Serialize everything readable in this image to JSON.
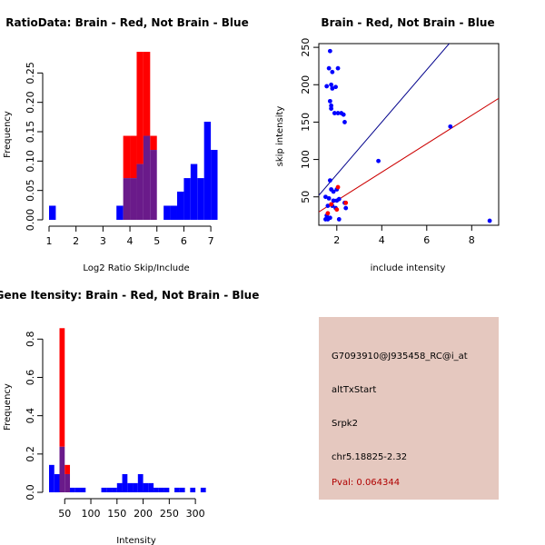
{
  "colors": {
    "red": "#ff0000",
    "blue": "#0000ff",
    "overlap": "#6a1a8a",
    "red_line": "#cc0000",
    "blue_line": "#00008b",
    "info_bg": "#e5c8bf",
    "pval": "#b00000"
  },
  "chart_data": [
    {
      "id": "ratio",
      "type": "bar",
      "title": "RatioData: Brain - Red, Not Brain - Blue",
      "xlabel": "Log2 Ratio Skip/Include",
      "ylabel": "Frequency",
      "xlim": [
        1,
        7.3
      ],
      "ylim": [
        0,
        0.3
      ],
      "xticks": [
        "1",
        "2",
        "3",
        "4",
        "5",
        "6",
        "7"
      ],
      "yticks": [
        "0.00",
        "0.05",
        "0.10",
        "0.15",
        "0.20",
        "0.25"
      ],
      "bin_width": 0.25,
      "series": [
        {
          "name": "Brain",
          "color": "red",
          "bins": [
            [
              3.75,
              0.143
            ],
            [
              4.0,
              0.143
            ],
            [
              4.25,
              0.286
            ],
            [
              4.5,
              0.286
            ],
            [
              4.75,
              0.143
            ]
          ]
        },
        {
          "name": "Not Brain",
          "color": "blue",
          "bins": [
            [
              1.0,
              0.024
            ],
            [
              3.5,
              0.024
            ],
            [
              3.75,
              0.071
            ],
            [
              4.0,
              0.071
            ],
            [
              4.25,
              0.095
            ],
            [
              4.5,
              0.143
            ],
            [
              4.75,
              0.119
            ],
            [
              5.25,
              0.024
            ],
            [
              5.5,
              0.024
            ],
            [
              5.75,
              0.048
            ],
            [
              6.0,
              0.071
            ],
            [
              6.25,
              0.095
            ],
            [
              6.5,
              0.071
            ],
            [
              6.75,
              0.167
            ],
            [
              7.0,
              0.119
            ]
          ]
        }
      ]
    },
    {
      "id": "scatter",
      "type": "scatter",
      "title": "Brain - Red, Not Brain - Blue",
      "xlabel": "include intensity",
      "ylabel": "skip intensity",
      "xlim": [
        1.2,
        9.2
      ],
      "ylim": [
        12,
        255
      ],
      "xticks": [
        "2",
        "4",
        "6",
        "8"
      ],
      "yticks": [
        "50",
        "100",
        "150",
        "200",
        "250"
      ],
      "series": [
        {
          "name": "Not Brain",
          "color": "blue",
          "points": [
            [
              1.7,
              245
            ],
            [
              1.65,
              222
            ],
            [
              2.05,
              222
            ],
            [
              1.8,
              217
            ],
            [
              1.55,
              198
            ],
            [
              1.75,
              200
            ],
            [
              1.8,
              195
            ],
            [
              1.95,
              197
            ],
            [
              1.7,
              178
            ],
            [
              1.75,
              172
            ],
            [
              1.75,
              168
            ],
            [
              1.9,
              162
            ],
            [
              2.05,
              162
            ],
            [
              2.2,
              162
            ],
            [
              2.3,
              160
            ],
            [
              2.35,
              150
            ],
            [
              1.7,
              72
            ],
            [
              1.75,
              60
            ],
            [
              1.85,
              57
            ],
            [
              2.0,
              60
            ],
            [
              1.5,
              50
            ],
            [
              1.65,
              48
            ],
            [
              1.85,
              45
            ],
            [
              2.0,
              45
            ],
            [
              2.1,
              47
            ],
            [
              2.35,
              42
            ],
            [
              1.6,
              38
            ],
            [
              1.8,
              38
            ],
            [
              1.95,
              35
            ],
            [
              2.4,
              35
            ],
            [
              1.55,
              25
            ],
            [
              1.7,
              22
            ],
            [
              1.6,
              20
            ],
            [
              1.5,
              20
            ],
            [
              2.1,
              20
            ],
            [
              3.85,
              98
            ],
            [
              7.05,
              144
            ],
            [
              8.8,
              18
            ]
          ]
        },
        {
          "name": "Brain",
          "color": "red",
          "points": [
            [
              2.05,
              63
            ],
            [
              1.75,
              40
            ],
            [
              2.0,
              33
            ],
            [
              2.4,
              42
            ],
            [
              1.6,
              28
            ]
          ]
        }
      ],
      "lines": [
        {
          "color": "blue_line",
          "intercept": 10,
          "slope": 35
        },
        {
          "color": "red_line",
          "intercept": 7,
          "slope": 19
        }
      ]
    },
    {
      "id": "gene",
      "type": "bar",
      "title": "Gene Itensity: Brain - Red, Not Brain - Blue",
      "xlabel": "Intensity",
      "ylabel": "Frequency",
      "xlim": [
        20,
        345
      ],
      "ylim": [
        0,
        0.92
      ],
      "xticks": [
        "50",
        "100",
        "150",
        "200",
        "250",
        "300"
      ],
      "yticks": [
        "0.0",
        "0.2",
        "0.4",
        "0.6",
        "0.8"
      ],
      "bin_width": 10,
      "series": [
        {
          "name": "Brain",
          "color": "red",
          "bins": [
            [
              40,
              0.857
            ],
            [
              50,
              0.143
            ]
          ]
        },
        {
          "name": "Not Brain",
          "color": "blue",
          "bins": [
            [
              20,
              0.143
            ],
            [
              30,
              0.095
            ],
            [
              40,
              0.238
            ],
            [
              50,
              0.095
            ],
            [
              60,
              0.024
            ],
            [
              70,
              0.024
            ],
            [
              80,
              0.024
            ],
            [
              120,
              0.024
            ],
            [
              130,
              0.024
            ],
            [
              140,
              0.024
            ],
            [
              150,
              0.048
            ],
            [
              160,
              0.095
            ],
            [
              170,
              0.048
            ],
            [
              180,
              0.048
            ],
            [
              190,
              0.095
            ],
            [
              200,
              0.048
            ],
            [
              210,
              0.048
            ],
            [
              220,
              0.024
            ],
            [
              230,
              0.024
            ],
            [
              240,
              0.024
            ],
            [
              260,
              0.024
            ],
            [
              270,
              0.024
            ],
            [
              290,
              0.024
            ],
            [
              310,
              0.024
            ]
          ]
        }
      ]
    }
  ],
  "info": {
    "probe": "G7093910@J935458_RC@i_at",
    "event": "altTxStart",
    "gene": "Srpk2",
    "location": "chr5.18825-2.32",
    "pval": "Pval: 0.064344"
  }
}
